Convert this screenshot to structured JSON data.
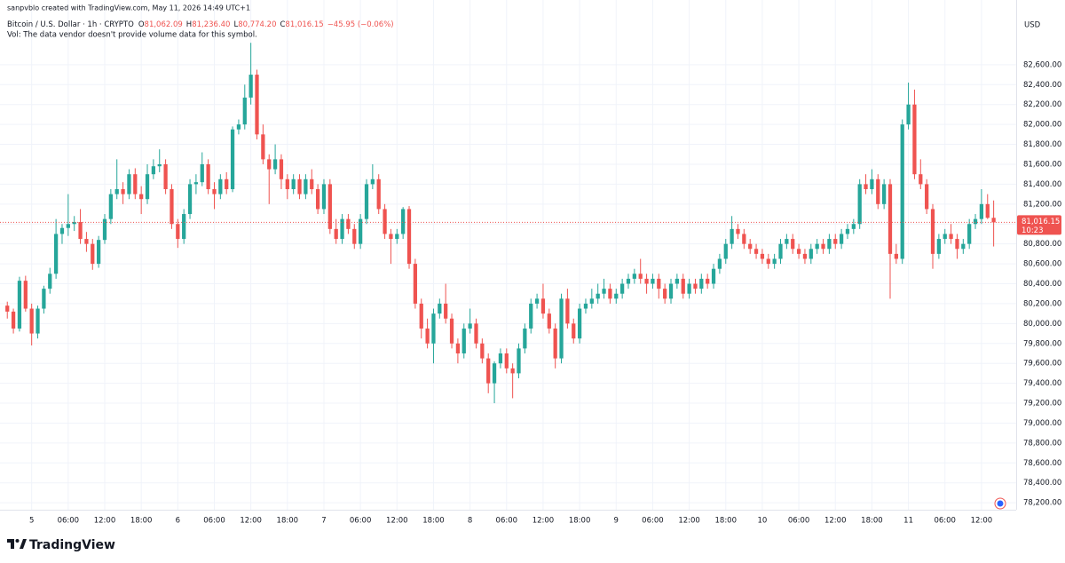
{
  "chart_data": {
    "type": "candlestick",
    "watermark": "sanpvblo created with TradingView.com, May 11, 2026 14:49 UTC+1",
    "symbol": "Bitcoin / U.S. Dollar · 1h · CRYPTO",
    "legend": [
      {
        "key": "O",
        "value_label": "81,062.09"
      },
      {
        "key": "H",
        "value_label": "81,236.40"
      },
      {
        "key": "L",
        "value_label": "80,774.20"
      },
      {
        "key": "C",
        "value_label": "81,016.15"
      }
    ],
    "change_label": "−45.95 (−0.06%)",
    "volume_note": "Vol: The data vendor doesn't provide volume data for this symbol.",
    "y_unit": "USD",
    "brand": "TradingView",
    "up_color": "#26a69a",
    "down_color": "#ef5350",
    "grid": true,
    "ylim": [
      78130,
      83250
    ],
    "yticks": [
      {
        "value": 78200,
        "label": "78,200.00"
      },
      {
        "value": 78400,
        "label": "78,400.00"
      },
      {
        "value": 78600,
        "label": "78,600.00"
      },
      {
        "value": 78800,
        "label": "78,800.00"
      },
      {
        "value": 79000,
        "label": "79,000.00"
      },
      {
        "value": 79200,
        "label": "79,200.00"
      },
      {
        "value": 79400,
        "label": "79,400.00"
      },
      {
        "value": 79600,
        "label": "79,600.00"
      },
      {
        "value": 79800,
        "label": "79,800.00"
      },
      {
        "value": 80000,
        "label": "80,000.00"
      },
      {
        "value": 80200,
        "label": "80,200.00"
      },
      {
        "value": 80400,
        "label": "80,400.00"
      },
      {
        "value": 80600,
        "label": "80,600.00"
      },
      {
        "value": 80800,
        "label": "80,800.00"
      },
      {
        "value": 81000,
        "label": "81,000.00"
      },
      {
        "value": 81200,
        "label": "81,200.00"
      },
      {
        "value": 81400,
        "label": "81,400.00"
      },
      {
        "value": 81600,
        "label": "81,600.00"
      },
      {
        "value": 81800,
        "label": "81,800.00"
      },
      {
        "value": 82000,
        "label": "82,000.00"
      },
      {
        "value": 82200,
        "label": "82,200.00"
      },
      {
        "value": 82400,
        "label": "82,400.00"
      },
      {
        "value": 82600,
        "label": "82,600.00"
      }
    ],
    "xlim": [
      -1.2,
      165.7
    ],
    "xticks": [
      {
        "value": 4,
        "label": "5"
      },
      {
        "value": 10,
        "label": "06:00"
      },
      {
        "value": 16,
        "label": "12:00"
      },
      {
        "value": 22,
        "label": "18:00"
      },
      {
        "value": 28,
        "label": "6"
      },
      {
        "value": 34,
        "label": "06:00"
      },
      {
        "value": 40,
        "label": "12:00"
      },
      {
        "value": 46,
        "label": "18:00"
      },
      {
        "value": 52,
        "label": "7"
      },
      {
        "value": 58,
        "label": "06:00"
      },
      {
        "value": 64,
        "label": "12:00"
      },
      {
        "value": 70,
        "label": "18:00"
      },
      {
        "value": 76,
        "label": "8"
      },
      {
        "value": 82,
        "label": "06:00"
      },
      {
        "value": 88,
        "label": "12:00"
      },
      {
        "value": 94,
        "label": "18:00"
      },
      {
        "value": 100,
        "label": "9"
      },
      {
        "value": 106,
        "label": "06:00"
      },
      {
        "value": 112,
        "label": "12:00"
      },
      {
        "value": 118,
        "label": "18:00"
      },
      {
        "value": 124,
        "label": "10"
      },
      {
        "value": 130,
        "label": "06:00"
      },
      {
        "value": 136,
        "label": "12:00"
      },
      {
        "value": 142,
        "label": "18:00"
      },
      {
        "value": 148,
        "label": "11"
      },
      {
        "value": 154,
        "label": "06:00"
      },
      {
        "value": 160,
        "label": "12:00"
      }
    ],
    "last_price": {
      "value": 81016.15,
      "label": "81,016.15"
    },
    "countdown": "10:23",
    "ohlc": [
      [
        80180,
        80220,
        80050,
        80120
      ],
      [
        80120,
        80150,
        79900,
        79950
      ],
      [
        79950,
        80470,
        79920,
        80430
      ],
      [
        80430,
        80480,
        80120,
        80150
      ],
      [
        80150,
        80200,
        79780,
        79900
      ],
      [
        79900,
        80180,
        79850,
        80150
      ],
      [
        80150,
        80380,
        80100,
        80350
      ],
      [
        80350,
        80560,
        80300,
        80500
      ],
      [
        80500,
        81050,
        80450,
        80900
      ],
      [
        80900,
        81000,
        80800,
        80960
      ],
      [
        80960,
        81300,
        80880,
        81000
      ],
      [
        81000,
        81080,
        80930,
        81020
      ],
      [
        81020,
        81150,
        80800,
        80850
      ],
      [
        80850,
        80920,
        80720,
        80800
      ],
      [
        80800,
        80850,
        80540,
        80600
      ],
      [
        80600,
        80880,
        80560,
        80840
      ],
      [
        80840,
        81100,
        80800,
        81050
      ],
      [
        81050,
        81350,
        81000,
        81300
      ],
      [
        81300,
        81650,
        81250,
        81350
      ],
      [
        81350,
        81420,
        81200,
        81300
      ],
      [
        81300,
        81550,
        81250,
        81500
      ],
      [
        81500,
        81560,
        81250,
        81300
      ],
      [
        81300,
        81380,
        81100,
        81250
      ],
      [
        81250,
        81600,
        81200,
        81500
      ],
      [
        81500,
        81650,
        81450,
        81580
      ],
      [
        81580,
        81750,
        81520,
        81600
      ],
      [
        81600,
        81650,
        81300,
        81350
      ],
      [
        81350,
        81400,
        80950,
        81000
      ],
      [
        81000,
        81050,
        80760,
        80850
      ],
      [
        80850,
        81150,
        80800,
        81100
      ],
      [
        81100,
        81450,
        81050,
        81400
      ],
      [
        81400,
        81500,
        81300,
        81420
      ],
      [
        81420,
        81720,
        81380,
        81600
      ],
      [
        81600,
        81650,
        81300,
        81350
      ],
      [
        81350,
        81420,
        81150,
        81300
      ],
      [
        81300,
        81500,
        81250,
        81450
      ],
      [
        81450,
        81520,
        81300,
        81350
      ],
      [
        81350,
        81980,
        81320,
        81950
      ],
      [
        81950,
        82050,
        81900,
        82000
      ],
      [
        82000,
        82400,
        81950,
        82270
      ],
      [
        82270,
        82820,
        82200,
        82500
      ],
      [
        82500,
        82550,
        81850,
        81900
      ],
      [
        81900,
        82000,
        81600,
        81650
      ],
      [
        81650,
        81700,
        81200,
        81550
      ],
      [
        81550,
        81800,
        81500,
        81650
      ],
      [
        81650,
        81700,
        81350,
        81450
      ],
      [
        81450,
        81500,
        81250,
        81350
      ],
      [
        81350,
        81500,
        81300,
        81450
      ],
      [
        81450,
        81500,
        81250,
        81300
      ],
      [
        81300,
        81500,
        81250,
        81450
      ],
      [
        81450,
        81550,
        81300,
        81350
      ],
      [
        81350,
        81400,
        81100,
        81150
      ],
      [
        81150,
        81450,
        81100,
        81400
      ],
      [
        81400,
        81450,
        80900,
        80950
      ],
      [
        80950,
        81050,
        80800,
        80850
      ],
      [
        80850,
        81100,
        80800,
        81050
      ],
      [
        81050,
        81100,
        80900,
        80950
      ],
      [
        80950,
        81000,
        80750,
        80800
      ],
      [
        80800,
        81100,
        80750,
        81050
      ],
      [
        81050,
        81450,
        81000,
        81400
      ],
      [
        81400,
        81600,
        81350,
        81450
      ],
      [
        81450,
        81500,
        81100,
        81150
      ],
      [
        81150,
        81200,
        80850,
        80900
      ],
      [
        80900,
        80950,
        80600,
        80850
      ],
      [
        80850,
        80950,
        80800,
        80900
      ],
      [
        80900,
        81170,
        80850,
        81150
      ],
      [
        81150,
        81180,
        80550,
        80600
      ],
      [
        80600,
        80650,
        80150,
        80200
      ],
      [
        80200,
        80250,
        79850,
        79950
      ],
      [
        79950,
        80050,
        79750,
        79800
      ],
      [
        79800,
        80150,
        79600,
        80100
      ],
      [
        80100,
        80250,
        80050,
        80200
      ],
      [
        80200,
        80400,
        80000,
        80050
      ],
      [
        80050,
        80100,
        79750,
        79800
      ],
      [
        79800,
        79850,
        79600,
        79700
      ],
      [
        79700,
        80000,
        79650,
        79950
      ],
      [
        79950,
        80150,
        79900,
        80000
      ],
      [
        80000,
        80050,
        79750,
        79800
      ],
      [
        79800,
        79850,
        79600,
        79650
      ],
      [
        79650,
        79700,
        79300,
        79400
      ],
      [
        79400,
        79620,
        79200,
        79600
      ],
      [
        79600,
        79750,
        79550,
        79700
      ],
      [
        79700,
        79750,
        79500,
        79550
      ],
      [
        79550,
        79600,
        79250,
        79500
      ],
      [
        79500,
        79800,
        79450,
        79750
      ],
      [
        79750,
        80000,
        79700,
        79950
      ],
      [
        79950,
        80250,
        79900,
        80200
      ],
      [
        80200,
        80300,
        80150,
        80250
      ],
      [
        80250,
        80400,
        80050,
        80100
      ],
      [
        80100,
        80150,
        79900,
        79950
      ],
      [
        79950,
        80000,
        79550,
        79650
      ],
      [
        79650,
        80300,
        79600,
        80250
      ],
      [
        80250,
        80350,
        79950,
        80000
      ],
      [
        80000,
        80050,
        79800,
        79850
      ],
      [
        79850,
        80200,
        79800,
        80150
      ],
      [
        80150,
        80250,
        80100,
        80200
      ],
      [
        80200,
        80350,
        80150,
        80250
      ],
      [
        80250,
        80400,
        80200,
        80300
      ],
      [
        80300,
        80450,
        80250,
        80350
      ],
      [
        80350,
        80400,
        80200,
        80250
      ],
      [
        80250,
        80350,
        80200,
        80300
      ],
      [
        80300,
        80450,
        80250,
        80400
      ],
      [
        80400,
        80500,
        80350,
        80450
      ],
      [
        80450,
        80550,
        80400,
        80500
      ],
      [
        80500,
        80650,
        80400,
        80450
      ],
      [
        80450,
        80500,
        80300,
        80400
      ],
      [
        80400,
        80500,
        80350,
        80450
      ],
      [
        80450,
        80500,
        80250,
        80350
      ],
      [
        80350,
        80400,
        80200,
        80250
      ],
      [
        80250,
        80450,
        80200,
        80400
      ],
      [
        80400,
        80500,
        80350,
        80450
      ],
      [
        80450,
        80500,
        80250,
        80300
      ],
      [
        80300,
        80450,
        80250,
        80400
      ],
      [
        80400,
        80450,
        80300,
        80350
      ],
      [
        80350,
        80500,
        80300,
        80450
      ],
      [
        80450,
        80500,
        80350,
        80400
      ],
      [
        80400,
        80600,
        80350,
        80550
      ],
      [
        80550,
        80700,
        80500,
        80650
      ],
      [
        80650,
        80850,
        80600,
        80800
      ],
      [
        80800,
        81080,
        80750,
        80950
      ],
      [
        80950,
        81000,
        80850,
        80900
      ],
      [
        80900,
        80950,
        80750,
        80800
      ],
      [
        80800,
        80850,
        80700,
        80750
      ],
      [
        80750,
        80800,
        80650,
        80700
      ],
      [
        80700,
        80750,
        80600,
        80650
      ],
      [
        80650,
        80700,
        80550,
        80600
      ],
      [
        80600,
        80700,
        80550,
        80650
      ],
      [
        80650,
        80850,
        80600,
        80800
      ],
      [
        80800,
        80900,
        80750,
        80850
      ],
      [
        80850,
        80900,
        80700,
        80750
      ],
      [
        80750,
        80800,
        80650,
        80700
      ],
      [
        80700,
        80750,
        80600,
        80650
      ],
      [
        80650,
        80800,
        80600,
        80750
      ],
      [
        80750,
        80850,
        80700,
        80800
      ],
      [
        80800,
        80850,
        80700,
        80750
      ],
      [
        80750,
        80900,
        80700,
        80850
      ],
      [
        80850,
        80900,
        80750,
        80800
      ],
      [
        80800,
        80950,
        80750,
        80900
      ],
      [
        80900,
        81000,
        80850,
        80950
      ],
      [
        80950,
        81050,
        80900,
        81000
      ],
      [
        81000,
        81450,
        80950,
        81400
      ],
      [
        81400,
        81500,
        81300,
        81350
      ],
      [
        81350,
        81550,
        81300,
        81450
      ],
      [
        81450,
        81500,
        81150,
        81200
      ],
      [
        81200,
        81450,
        81150,
        81400
      ],
      [
        81400,
        81450,
        80250,
        80700
      ],
      [
        80700,
        80800,
        80600,
        80650
      ],
      [
        80650,
        82050,
        80600,
        82000
      ],
      [
        82000,
        82420,
        81950,
        82200
      ],
      [
        82200,
        82350,
        81450,
        81500
      ],
      [
        81500,
        81650,
        81350,
        81400
      ],
      [
        81400,
        81450,
        81100,
        81150
      ],
      [
        81150,
        81200,
        80550,
        80700
      ],
      [
        80700,
        80900,
        80650,
        80850
      ],
      [
        80850,
        80950,
        80800,
        80900
      ],
      [
        80900,
        81000,
        80800,
        80850
      ],
      [
        80850,
        80900,
        80650,
        80750
      ],
      [
        80750,
        80850,
        80700,
        80800
      ],
      [
        80800,
        81050,
        80750,
        81000
      ],
      [
        81000,
        81100,
        80950,
        81050
      ],
      [
        81050,
        81350,
        81000,
        81200
      ],
      [
        81200,
        81300,
        81050,
        81062.09
      ],
      [
        81062.09,
        81236.4,
        80774.2,
        81016.15
      ]
    ]
  }
}
